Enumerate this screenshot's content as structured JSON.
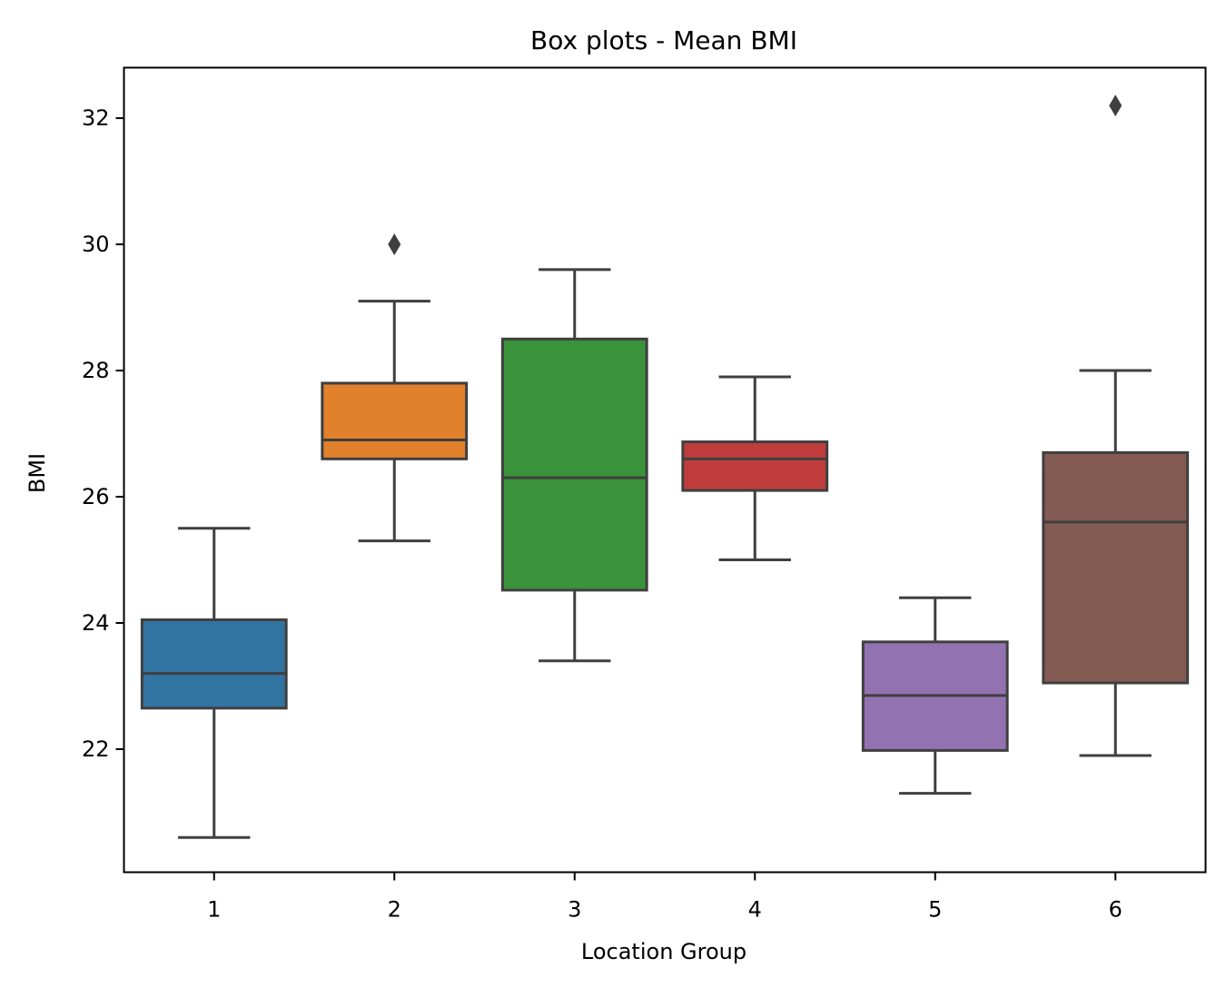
{
  "chart_data": {
    "type": "boxplot",
    "title": "Box plots - Mean BMI",
    "xlabel": "Location Group",
    "ylabel": "BMI",
    "ylim": [
      20.05,
      32.8
    ],
    "yticks": [
      22,
      24,
      26,
      28,
      30,
      32
    ],
    "ytick_labels": [
      "22",
      "24",
      "26",
      "28",
      "30",
      "32"
    ],
    "categories": [
      "1",
      "2",
      "3",
      "4",
      "5",
      "6"
    ],
    "grid": false,
    "line_color": "#3f3f3f",
    "boxes": [
      {
        "category": "1",
        "whisker_low": 20.6,
        "q1": 22.65,
        "median": 23.2,
        "q3": 24.05,
        "whisker_high": 25.5,
        "outliers": [],
        "color": "#3274a1"
      },
      {
        "category": "2",
        "whisker_low": 25.3,
        "q1": 26.6,
        "median": 26.9,
        "q3": 27.8,
        "whisker_high": 29.1,
        "outliers": [
          30.0
        ],
        "color": "#e1812c"
      },
      {
        "category": "3",
        "whisker_low": 23.4,
        "q1": 24.52,
        "median": 26.3,
        "q3": 28.5,
        "whisker_high": 29.6,
        "outliers": [],
        "color": "#3a923a"
      },
      {
        "category": "4",
        "whisker_low": 25.0,
        "q1": 26.1,
        "median": 26.6,
        "q3": 26.87,
        "whisker_high": 27.9,
        "outliers": [],
        "color": "#c03d3e"
      },
      {
        "category": "5",
        "whisker_low": 21.3,
        "q1": 21.98,
        "median": 22.85,
        "q3": 23.7,
        "whisker_high": 24.4,
        "outliers": [],
        "color": "#9372b2"
      },
      {
        "category": "6",
        "whisker_low": 21.9,
        "q1": 23.05,
        "median": 25.6,
        "q3": 26.7,
        "whisker_high": 28.0,
        "outliers": [
          32.2
        ],
        "color": "#845b53"
      }
    ]
  }
}
